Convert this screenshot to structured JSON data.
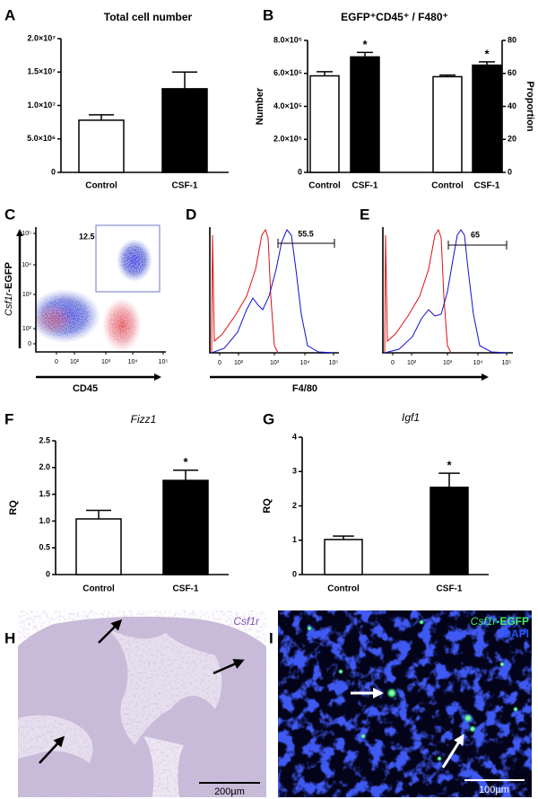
{
  "chart_data": [
    {
      "type": "bar",
      "panel": "A",
      "title": "Total cell number",
      "categories": [
        "Control",
        "CSF-1"
      ],
      "values": [
        7800000,
        12500000
      ],
      "errors": [
        800000,
        2500000
      ],
      "colors": [
        "#ffffff",
        "#000000"
      ],
      "ylim": [
        0,
        20000000
      ],
      "yticks": [
        0,
        {
          "value": 5000000,
          "label": "5.0×10⁶"
        },
        {
          "value": 10000000,
          "label": "1.0×10⁷"
        },
        {
          "value": 15000000,
          "label": "1.5×10⁷"
        },
        {
          "value": 20000000,
          "label": "2.0×10⁷"
        }
      ]
    },
    {
      "type": "bar",
      "panel": "B",
      "title": "EGFP⁺CD45⁺ / F480⁺",
      "ylabel": "Number",
      "y2label": "Proportion",
      "colors": [
        "#ffffff",
        "#000000"
      ],
      "ylim": [
        0,
        800000
      ],
      "yticks": [
        0,
        {
          "value": 200000,
          "label": "2.0×10⁵"
        },
        {
          "value": 400000,
          "label": "4.0×10⁵"
        },
        {
          "value": 600000,
          "label": "6.0×10⁵"
        },
        {
          "value": 800000,
          "label": "8.0×10⁵"
        }
      ],
      "y2lim": [
        0,
        80
      ],
      "y2ticks": [
        0,
        20,
        40,
        60,
        80
      ],
      "groups": [
        {
          "categories": [
            "Control",
            "CSF-1"
          ],
          "values": [
            585000,
            700000
          ],
          "errors": [
            25000,
            27000
          ],
          "annotation": "*"
        },
        {
          "axis": "y2",
          "categories": [
            "Control",
            "CSF-1"
          ],
          "values": [
            58,
            65
          ],
          "errors": [
            1,
            2
          ],
          "annotation": "*"
        }
      ]
    },
    {
      "type": "bar",
      "panel": "F",
      "title": "Fizz1",
      "ylabel": "RQ",
      "categories": [
        "Control",
        "CSF-1"
      ],
      "values": [
        1.04,
        1.76
      ],
      "errors": [
        0.16,
        0.19
      ],
      "annotation": "*",
      "colors": [
        "#ffffff",
        "#000000"
      ],
      "ylim": [
        0,
        2.5
      ],
      "yticks": [
        0,
        0.5,
        {
          "value": 1,
          "label": "1.0"
        },
        1.5,
        {
          "value": 2,
          "label": "2.0"
        },
        2.5
      ]
    },
    {
      "type": "bar",
      "panel": "G",
      "title": "Igf1",
      "ylabel": "RQ",
      "categories": [
        "Control",
        "CSF-1"
      ],
      "values": [
        1.02,
        2.54
      ],
      "errors": [
        0.1,
        0.41
      ],
      "annotation": "*",
      "colors": [
        "#ffffff",
        "#000000"
      ],
      "ylim": [
        0,
        4
      ],
      "yticks": [
        0,
        1,
        2,
        3,
        4
      ]
    }
  ],
  "flow_cytometry": {
    "C": {
      "panel": "C",
      "gate_value": 12.5,
      "xlabel": "CD45",
      "ylabel_gene": "Csf1r",
      "ylabel_suffix": "-EGFP",
      "xtick_labels": [
        "0",
        "10²",
        "10³",
        "10⁴",
        "10⁵"
      ],
      "ytick_labels": [
        "10⁵",
        "10⁴",
        "10³",
        "10²",
        "0"
      ]
    },
    "D": {
      "panel": "D",
      "gate_value": 55.5,
      "xtick_labels": [
        "0",
        "10²",
        "10³",
        "10⁴",
        "10⁵"
      ]
    },
    "E": {
      "panel": "E",
      "gate_value": 65,
      "xtick_labels": [
        "0",
        "10²",
        "10³",
        "10⁴",
        "10⁵"
      ]
    },
    "xlabel": "F4/80"
  },
  "images": {
    "H": {
      "panel": "H",
      "stain": "Csf1r",
      "scale_bar": "200µm"
    },
    "I": {
      "panel": "I",
      "stain_gene": "Csf1r",
      "stain_suffix": "-EGFP",
      "counterstain": "DAPI",
      "scale_bar": "100µm"
    }
  }
}
